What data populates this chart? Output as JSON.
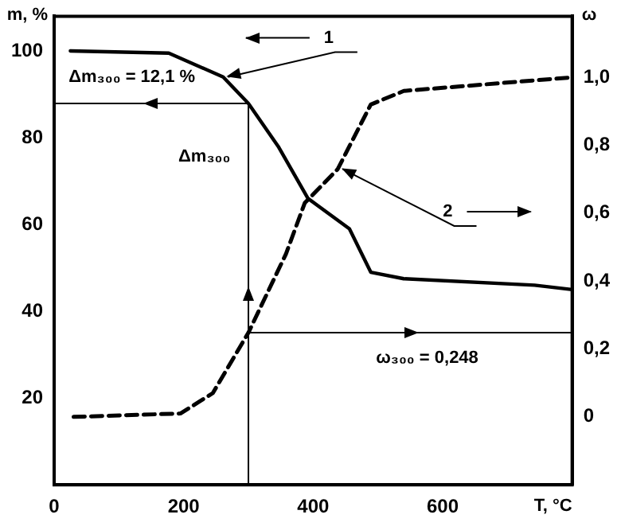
{
  "chart_data": {
    "type": "line",
    "xlabel": "T, °C",
    "ylabel": "m, %",
    "y2label": "ω",
    "xlim": [
      0,
      800
    ],
    "xticks": [
      0,
      200,
      400,
      600
    ],
    "ylim": [
      0,
      108
    ],
    "yticks": [
      20,
      40,
      60,
      80,
      100
    ],
    "y2lim": [
      -0.2,
      1.18
    ],
    "y2ticks": [
      0,
      {
        "value": 0.2,
        "label": "0,2"
      },
      {
        "value": 0.4,
        "label": "0,4"
      },
      {
        "value": 0.6,
        "label": "0,6"
      },
      {
        "value": 0.8,
        "label": "0,8"
      },
      {
        "value": 1,
        "label": "1,0"
      }
    ],
    "grid": false,
    "legend": false,
    "marker": "none",
    "series": [
      {
        "color": "#000000",
        "line_style": "solid",
        "x": [
          25,
          177,
          261,
          300,
          346,
          392,
          456,
          489,
          540,
          742,
          800
        ],
        "values": [
          100,
          99.5,
          94,
          87.9,
          78,
          66,
          59,
          49,
          47.5,
          46,
          45
        ]
      },
      {
        "color": "#000000",
        "line_style": "dashed",
        "axis": "y2",
        "x": [
          30,
          195,
          245,
          300,
          358,
          387,
          438,
          489,
          540,
          800
        ],
        "values": [
          0,
          0.01,
          0.07,
          0.248,
          0.48,
          0.63,
          0.73,
          0.92,
          0.96,
          1.0
        ]
      },
      {
        "color": "#000000",
        "line_style": "solid",
        "x": [
          300,
          0
        ],
        "values": [
          87.9,
          87.9
        ]
      },
      {
        "color": "#000000",
        "line_style": "solid",
        "x": [
          300,
          300
        ],
        "values": [
          0,
          87.9
        ]
      },
      {
        "color": "#000000",
        "line_style": "solid",
        "axis": "y2",
        "x": [
          300,
          800
        ],
        "values": [
          0.248,
          0.248
        ]
      }
    ],
    "annotations": [
      "Δm₃₀₀ = 12,1 %",
      "Δm₃₀₀",
      "ω₃₀₀ = 0,248",
      "1",
      "2"
    ]
  }
}
